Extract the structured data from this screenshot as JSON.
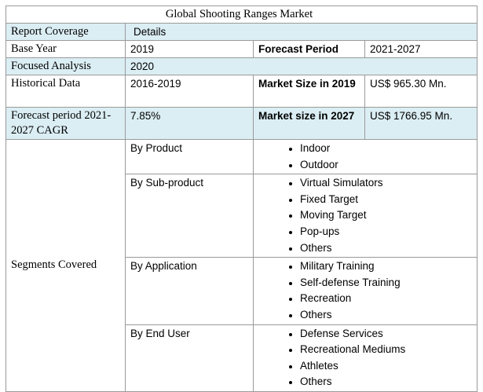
{
  "table": {
    "title": "Global Shooting Ranges Market",
    "header": [
      "Report Coverage",
      "Details"
    ],
    "base_year": [
      "Base Year",
      "2019",
      "Forecast Period",
      "2021-2027"
    ],
    "focused": [
      "Focused Analysis",
      "2020"
    ],
    "historical": [
      "Historical Data",
      "2016-2019",
      "Market Size in 2019",
      "US$ 965.30 Mn."
    ],
    "forecast": [
      "Forecast period 2021-2027 CAGR",
      "7.85%",
      "Market size in 2027",
      "US$ 1766.95 Mn."
    ],
    "segments": {
      "label": "Segments Covered",
      "groups": [
        {
          "name": "By Product",
          "items": [
            "Indoor",
            "Outdoor"
          ]
        },
        {
          "name": "By Sub-product",
          "items": [
            "Virtual Simulators",
            "Fixed Target",
            "Moving Target",
            "Pop-ups",
            "Others"
          ]
        },
        {
          "name": "By Application",
          "items": [
            "Military Training",
            "Self-defense Training",
            "Recreation",
            "Others"
          ]
        },
        {
          "name": "By End User",
          "items": [
            "Defense Services",
            "Recreational Mediums",
            "Athletes",
            "Others"
          ]
        }
      ]
    }
  }
}
